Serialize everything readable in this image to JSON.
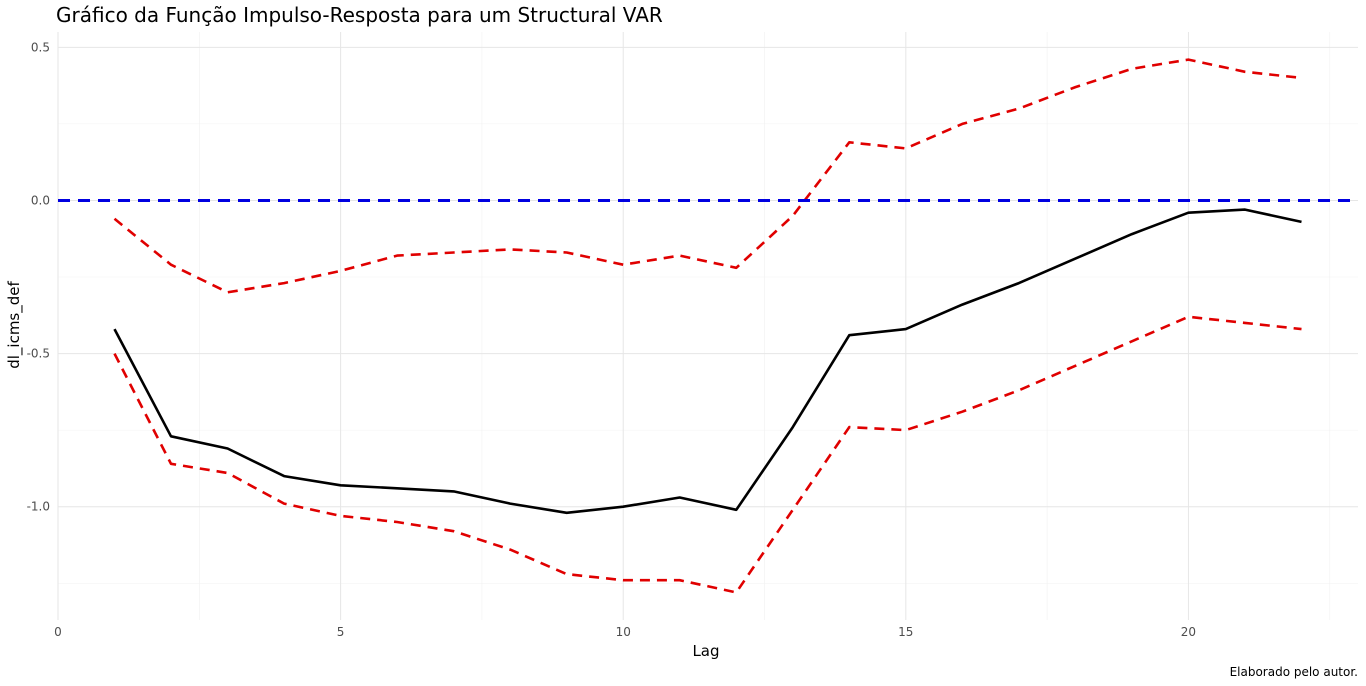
{
  "chart_data": {
    "type": "line",
    "title": "Gráfico da Função Impulso-Resposta para um Structural VAR",
    "xlabel": "Lag",
    "ylabel": "dl_icms_def",
    "caption": "Elaborado pelo autor.",
    "xlim": [
      0,
      23
    ],
    "ylim": [
      -1.37,
      0.55
    ],
    "xticks": [
      0,
      5,
      10,
      15,
      20
    ],
    "xtick_labels": [
      "0",
      "5",
      "10",
      "15",
      "20"
    ],
    "yticks": [
      0.5,
      0.0,
      -0.5,
      -1.0
    ],
    "ytick_labels": [
      "0.5",
      "0.0",
      "-0.5",
      "-1.0"
    ],
    "grid": true,
    "x": [
      1,
      2,
      3,
      4,
      5,
      6,
      7,
      8,
      9,
      10,
      11,
      12,
      13,
      14,
      15,
      16,
      17,
      18,
      19,
      20,
      21,
      22
    ],
    "series": [
      {
        "style": "solid",
        "color": "#000000",
        "values": [
          -0.42,
          -0.77,
          -0.81,
          -0.9,
          -0.93,
          -0.94,
          -0.95,
          -0.99,
          -1.02,
          -1.0,
          -0.97,
          -1.01,
          -0.74,
          -0.44,
          -0.42,
          -0.34,
          -0.27,
          -0.19,
          -0.11,
          -0.04,
          -0.03,
          -0.07
        ]
      },
      {
        "style": "dashed",
        "color": "#e00000",
        "values": [
          -0.06,
          -0.21,
          -0.3,
          -0.27,
          -0.23,
          -0.18,
          -0.17,
          -0.16,
          -0.17,
          -0.21,
          -0.18,
          -0.22,
          -0.05,
          0.19,
          0.17,
          0.25,
          0.3,
          0.37,
          0.43,
          0.46,
          0.42,
          0.4
        ]
      },
      {
        "style": "dashed",
        "color": "#e00000",
        "values": [
          -0.5,
          -0.86,
          -0.89,
          -0.99,
          -1.03,
          -1.05,
          -1.08,
          -1.14,
          -1.22,
          -1.24,
          -1.24,
          -1.28,
          -1.01,
          -0.74,
          -0.75,
          -0.69,
          -0.62,
          -0.54,
          -0.46,
          -0.38,
          -0.4,
          -0.42
        ]
      }
    ],
    "hline": {
      "y": 0.0,
      "style": "dashed",
      "color": "#0000e0"
    }
  }
}
